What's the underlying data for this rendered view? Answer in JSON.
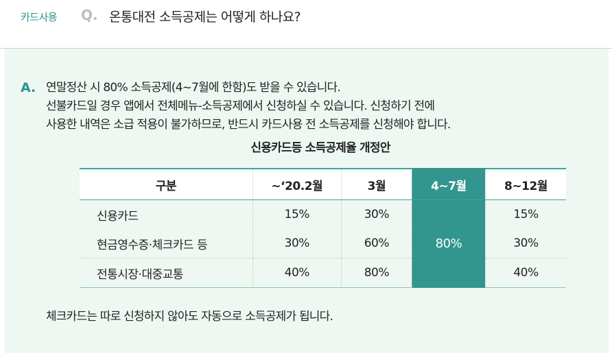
{
  "header": {
    "category": "카드사용",
    "q_mark": "Q.",
    "question": "온통대전 소득공제는 어떻게 하나요?"
  },
  "answer": {
    "a_mark": "A.",
    "lines": [
      "연말정산 시 80% 소득공제(4~7월에 한함)도 받을 수 있습니다.",
      "선불카드일 경우 앱에서 전체메뉴-소득공제에서 신청하실 수 있습니다. 신청하기 전에",
      "사용한 내역은 소급 적용이 불가하므로, 반드시 카드사용 전 소득공제를 신청해야 합니다."
    ],
    "table_title": "신용카드등 소득공제율 개정안",
    "table": {
      "headers": [
        "구분",
        "~‘20.2월",
        "3월",
        "4~7월",
        "8~12월"
      ],
      "rows": [
        {
          "label": "신용카드",
          "c1": "15%",
          "c2": "30%",
          "c4": "15%"
        },
        {
          "label": "현금영수증·체크카드 등",
          "c1": "30%",
          "c2": "60%",
          "c4": "30%"
        },
        {
          "label": "전통시장·대중교통",
          "c1": "40%",
          "c2": "80%",
          "c4": "40%"
        }
      ],
      "merged_value": "80%"
    },
    "footer_note": "체크카드는 따로 신청하지 않아도 자동으로 소득공제가 됩니다."
  },
  "colors": {
    "accent": "#2a948c",
    "highlight_column": "#33958f",
    "answer_background": "#eef7f1"
  }
}
